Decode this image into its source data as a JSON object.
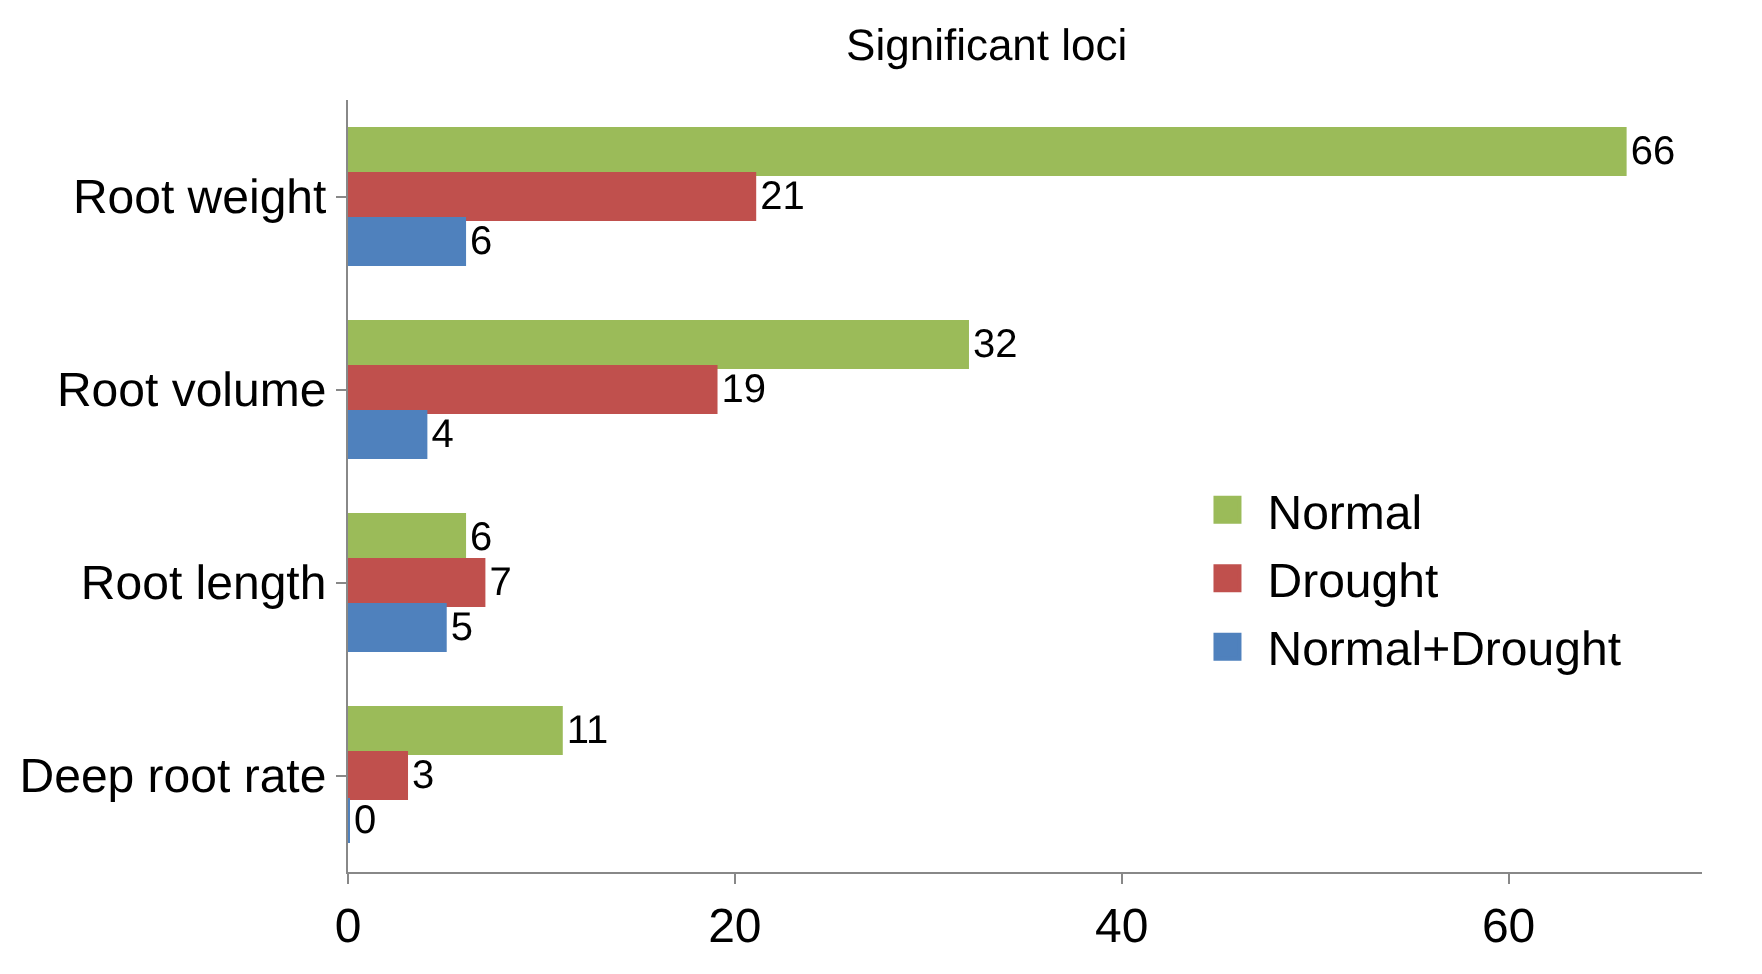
{
  "chart_data": {
    "type": "bar",
    "orientation": "horizontal",
    "title": "Significant loci",
    "categories": [
      "Root weight",
      "Root volume",
      "Root length",
      "Deep root rate"
    ],
    "series": [
      {
        "name": "Normal",
        "color": "#9bbb59",
        "values": [
          66,
          32,
          6,
          11
        ]
      },
      {
        "name": "Drought",
        "color": "#c0504d",
        "values": [
          21,
          19,
          7,
          3
        ]
      },
      {
        "name": "Normal+Drought",
        "color": "#4f81bd",
        "values": [
          6,
          4,
          5,
          0
        ]
      }
    ],
    "xlim": [
      0,
      70
    ],
    "xticks": [
      0,
      20,
      40,
      60
    ],
    "grid": false,
    "legend": "right",
    "data_labels": true
  }
}
